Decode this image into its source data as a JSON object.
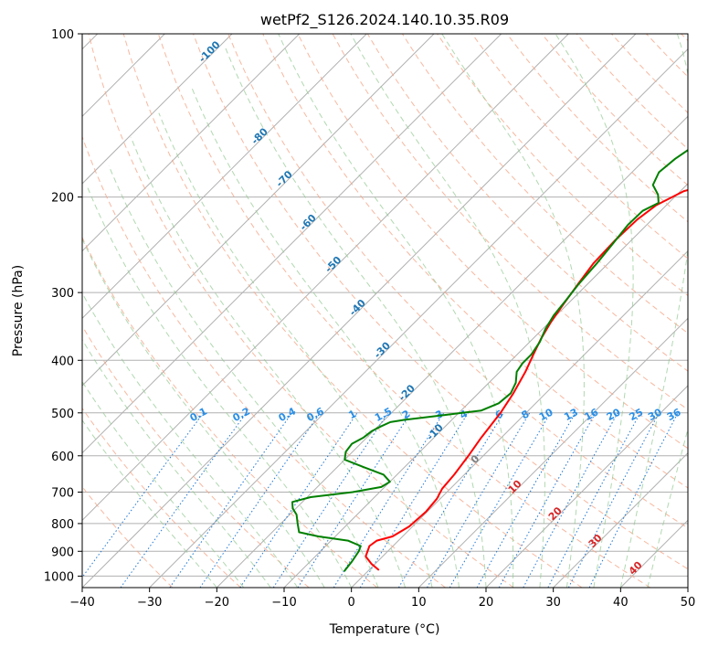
{
  "chart_data": {
    "type": "line",
    "title": "wetPf2_S126.2024.140.10.35.R09",
    "xlabel": "Temperature (°C)",
    "ylabel": "Pressure (hPa)",
    "xlim": [
      -40,
      50
    ],
    "ylim": [
      1050,
      100
    ],
    "y_scale": "log",
    "grid": true,
    "x_ticks": [
      "−40",
      "−30",
      "−20",
      "−10",
      "0",
      "10",
      "20",
      "30",
      "40",
      "50"
    ],
    "y_ticks": [
      "100",
      "200",
      "300",
      "400",
      "500",
      "600",
      "700",
      "800",
      "900",
      "1000"
    ],
    "colors": {
      "temperature": "#ff0000",
      "dewpoint": "#008000",
      "dry_adiabat": "#f5a688",
      "moist_adiabat": "#90c890",
      "mixing_ratio": "#1f77d4",
      "isotherm_label_cold": "#1f77b4",
      "isotherm_label_warm": "#d62728",
      "isotherm_label_zero": "#808080",
      "grid": "#b0b0b0"
    },
    "isotherm_labels": [
      {
        "t": -100,
        "text": "-100",
        "color": "#1f77b4"
      },
      {
        "t": -90,
        "text": "-90",
        "color": "#1f77b4"
      },
      {
        "t": -80,
        "text": "-80",
        "color": "#1f77b4"
      },
      {
        "t": -70,
        "text": "-70",
        "color": "#1f77b4"
      },
      {
        "t": -60,
        "text": "-60",
        "color": "#1f77b4"
      },
      {
        "t": -50,
        "text": "-50",
        "color": "#1f77b4"
      },
      {
        "t": -40,
        "text": "-40",
        "color": "#1f77b4"
      },
      {
        "t": -30,
        "text": "-30",
        "color": "#1f77b4"
      },
      {
        "t": -20,
        "text": "-20",
        "color": "#1f77b4"
      },
      {
        "t": -10,
        "text": "-10",
        "color": "#1f77b4"
      },
      {
        "t": 0,
        "text": "0",
        "color": "#808080"
      },
      {
        "t": 10,
        "text": "10",
        "color": "#d62728"
      },
      {
        "t": 20,
        "text": "20",
        "color": "#d62728"
      },
      {
        "t": 30,
        "text": "30",
        "color": "#d62728"
      },
      {
        "t": 40,
        "text": "40",
        "color": "#d62728"
      }
    ],
    "mixing_ratio_labels": [
      "0.1",
      "0.2",
      "0.4",
      "0.6",
      "1",
      "1.5",
      "2",
      "3",
      "4",
      "6",
      "8",
      "10",
      "13",
      "16",
      "20",
      "25",
      "30",
      "36"
    ],
    "mixing_ratio_values": [
      0.1,
      0.2,
      0.4,
      0.6,
      1,
      1.5,
      2,
      3,
      4,
      6,
      8,
      10,
      13,
      16,
      20,
      25,
      30,
      36
    ],
    "series": [
      {
        "key": "temperature",
        "color": "#ff0000",
        "points": [
          [
            975,
            1.5
          ],
          [
            950,
            -0.5
          ],
          [
            920,
            -2.5
          ],
          [
            880,
            -3.5
          ],
          [
            860,
            -3.2
          ],
          [
            845,
            -1.5
          ],
          [
            810,
            -0.5
          ],
          [
            760,
            -0.2
          ],
          [
            720,
            -0.5
          ],
          [
            690,
            -1.2
          ],
          [
            650,
            -1.5
          ],
          [
            600,
            -2.2
          ],
          [
            555,
            -3.0
          ],
          [
            500,
            -3.8
          ],
          [
            460,
            -4.8
          ],
          [
            420,
            -6.2
          ],
          [
            390,
            -7.6
          ],
          [
            365,
            -8.8
          ],
          [
            340,
            -9.8
          ],
          [
            315,
            -10.6
          ],
          [
            290,
            -11.4
          ],
          [
            265,
            -12.2
          ],
          [
            240,
            -12.4
          ],
          [
            220,
            -12.2
          ],
          [
            207,
            -11.5
          ],
          [
            195,
            -9.5
          ],
          [
            185,
            -4.0
          ],
          [
            175,
            1.0
          ],
          [
            165,
            5.5
          ],
          [
            155,
            9.0
          ],
          [
            145,
            11.5
          ],
          [
            135,
            13.5
          ],
          [
            125,
            15.0
          ],
          [
            115,
            17.5
          ],
          [
            107,
            19.5
          ],
          [
            100,
            20.7
          ]
        ]
      },
      {
        "key": "dewpoint",
        "color": "#008000",
        "points": [
          [
            980,
            -3.5
          ],
          [
            940,
            -3.8
          ],
          [
            900,
            -4.3
          ],
          [
            880,
            -4.8
          ],
          [
            860,
            -7.5
          ],
          [
            845,
            -12.5
          ],
          [
            830,
            -16.0
          ],
          [
            800,
            -17.5
          ],
          [
            770,
            -19.0
          ],
          [
            750,
            -20.5
          ],
          [
            730,
            -21.5
          ],
          [
            715,
            -19.5
          ],
          [
            700,
            -14.0
          ],
          [
            685,
            -10.5
          ],
          [
            670,
            -10.0
          ],
          [
            650,
            -12.0
          ],
          [
            630,
            -16.0
          ],
          [
            610,
            -20.0
          ],
          [
            590,
            -21.0
          ],
          [
            570,
            -21.3
          ],
          [
            555,
            -20.5
          ],
          [
            540,
            -20.2
          ],
          [
            530,
            -19.6
          ],
          [
            520,
            -18.8
          ],
          [
            515,
            -17.0
          ],
          [
            505,
            -12.0
          ],
          [
            495,
            -7.0
          ],
          [
            480,
            -5.5
          ],
          [
            460,
            -5.2
          ],
          [
            440,
            -6.0
          ],
          [
            420,
            -7.5
          ],
          [
            405,
            -7.9
          ],
          [
            390,
            -7.9
          ],
          [
            370,
            -8.5
          ],
          [
            350,
            -9.6
          ],
          [
            330,
            -10.4
          ],
          [
            310,
            -10.8
          ],
          [
            290,
            -11.3
          ],
          [
            265,
            -11.7
          ],
          [
            245,
            -12.2
          ],
          [
            225,
            -12.8
          ],
          [
            212,
            -12.7
          ],
          [
            205,
            -11.5
          ],
          [
            198,
            -12.8
          ],
          [
            190,
            -15.0
          ],
          [
            180,
            -16.0
          ],
          [
            170,
            -15.6
          ],
          [
            160,
            -14.6
          ],
          [
            150,
            -13.0
          ],
          [
            140,
            -10.5
          ],
          [
            130,
            -7.0
          ],
          [
            120,
            -4.5
          ],
          [
            110,
            -1.5
          ],
          [
            100,
            2.2
          ]
        ]
      }
    ]
  }
}
